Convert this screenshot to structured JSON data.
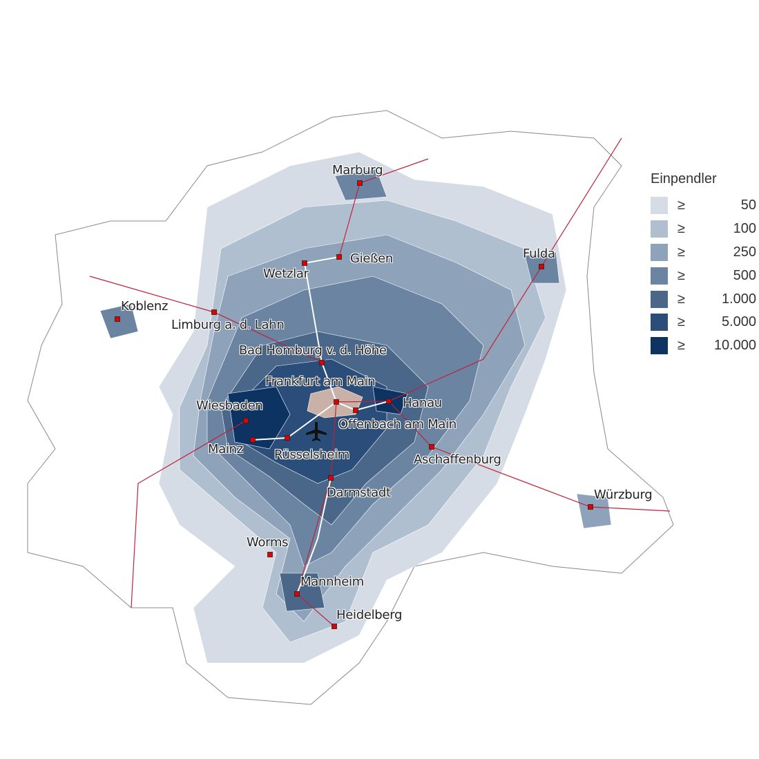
{
  "legend": {
    "title": "Einpendler",
    "classes": [
      {
        "symbol": "≥",
        "value": "50",
        "color": "#d5dce5"
      },
      {
        "symbol": "≥",
        "value": "100",
        "color": "#afbfcf"
      },
      {
        "symbol": "≥",
        "value": "250",
        "color": "#8ea3b9"
      },
      {
        "symbol": "≥",
        "value": "500",
        "color": "#6a84a2"
      },
      {
        "symbol": "≥",
        "value": "1.000",
        "color": "#4a6689"
      },
      {
        "symbol": "≥",
        "value": "5.000",
        "color": "#2b4d79"
      },
      {
        "symbol": "≥",
        "value": "10.000",
        "color": "#0d3363"
      }
    ]
  },
  "colors": {
    "destination": "#c9b1a8",
    "city_marker": "#e00000",
    "railway": "#c0223a",
    "motorway": "#ffffff",
    "boundary": "#999999"
  },
  "cities": [
    "Marburg",
    "Gießen",
    "Wetzlar",
    "Fulda",
    "Koblenz",
    "Limburg a. d. Lahn",
    "Bad Homburg v. d. Höhe",
    "Frankfurt am Main",
    "Hanau",
    "Wiesbaden",
    "Offenbach am Main",
    "Mainz",
    "Rüsselsheim",
    "Aschaffenburg",
    "Darmstadt",
    "Würzburg",
    "Worms",
    "Mannheim",
    "Heidelberg"
  ],
  "icons": {
    "airport": "airplane-icon"
  }
}
